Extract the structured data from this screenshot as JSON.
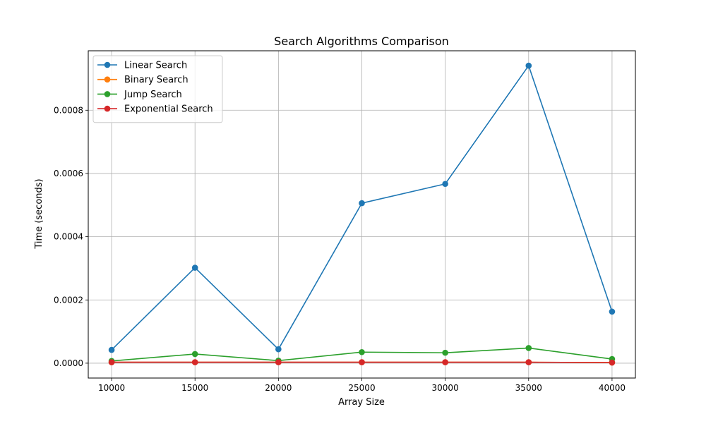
{
  "chart_data": {
    "type": "line",
    "title": "Search Algorithms Comparison",
    "xlabel": "Array Size",
    "ylabel": "Time (seconds)",
    "x": [
      10000,
      15000,
      20000,
      25000,
      30000,
      35000,
      40000
    ],
    "xticks": [
      "10000",
      "15000",
      "20000",
      "25000",
      "30000",
      "35000",
      "40000"
    ],
    "yticks": [
      0,
      0.0002,
      0.0004,
      0.0006,
      0.0008
    ],
    "ytick_labels": [
      "0.0000",
      "0.0002",
      "0.0004",
      "0.0006",
      "0.0008"
    ],
    "xlim": [
      8600,
      41400
    ],
    "ylim": [
      -4.7e-05,
      0.000988
    ],
    "grid": true,
    "legend_position": "upper-left",
    "series": [
      {
        "name": "Linear Search",
        "color": "#1f77b4",
        "values": [
          4.2e-05,
          0.000302,
          4.4e-05,
          0.000506,
          0.000567,
          0.000941,
          0.000163
        ]
      },
      {
        "name": "Binary Search",
        "color": "#ff7f0e",
        "values": [
          3e-06,
          3e-06,
          3e-06,
          3e-06,
          3e-06,
          3e-06,
          2e-06
        ]
      },
      {
        "name": "Jump Search",
        "color": "#2ca02c",
        "values": [
          7e-06,
          2.9e-05,
          8e-06,
          3.5e-05,
          3.3e-05,
          4.8e-05,
          1.3e-05
        ]
      },
      {
        "name": "Exponential Search",
        "color": "#d62728",
        "values": [
          3e-06,
          3e-06,
          3e-06,
          3e-06,
          3e-06,
          3e-06,
          2e-06
        ]
      }
    ]
  }
}
